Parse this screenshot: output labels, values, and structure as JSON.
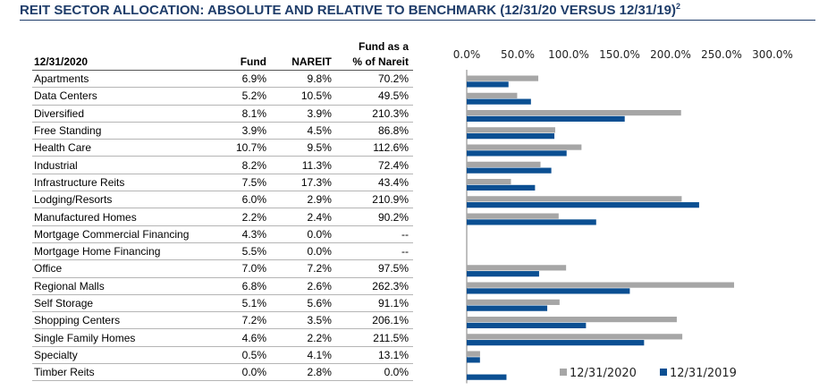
{
  "title": "REIT SECTOR ALLOCATION: ABSOLUTE AND RELATIVE TO BENCHMARK (12/31/20 VERSUS 12/31/19)",
  "title_footnote": "2",
  "table": {
    "headers": {
      "date": "12/31/2020",
      "fund": "Fund",
      "nareit": "NAREIT",
      "ratio_line1": "Fund as a",
      "ratio_line2": "% of Nareit"
    },
    "rows": [
      {
        "sector": "Apartments",
        "fund": "6.9%",
        "nareit": "9.8%",
        "ratio": "70.2%"
      },
      {
        "sector": "Data Centers",
        "fund": "5.2%",
        "nareit": "10.5%",
        "ratio": "49.5%"
      },
      {
        "sector": "Diversified",
        "fund": "8.1%",
        "nareit": "3.9%",
        "ratio": "210.3%"
      },
      {
        "sector": "Free Standing",
        "fund": "3.9%",
        "nareit": "4.5%",
        "ratio": "86.8%"
      },
      {
        "sector": "Health Care",
        "fund": "10.7%",
        "nareit": "9.5%",
        "ratio": "112.6%"
      },
      {
        "sector": "Industrial",
        "fund": "8.2%",
        "nareit": "11.3%",
        "ratio": "72.4%"
      },
      {
        "sector": "Infrastructure Reits",
        "fund": "7.5%",
        "nareit": "17.3%",
        "ratio": "43.4%"
      },
      {
        "sector": "Lodging/Resorts",
        "fund": "6.0%",
        "nareit": "2.9%",
        "ratio": "210.9%"
      },
      {
        "sector": "Manufactured Homes",
        "fund": "2.2%",
        "nareit": "2.4%",
        "ratio": "90.2%"
      },
      {
        "sector": "Mortgage Commercial Financing",
        "fund": "4.3%",
        "nareit": "0.0%",
        "ratio": "--"
      },
      {
        "sector": "Mortgage Home Financing",
        "fund": "5.5%",
        "nareit": "0.0%",
        "ratio": "--"
      },
      {
        "sector": "Office",
        "fund": "7.0%",
        "nareit": "7.2%",
        "ratio": "97.5%"
      },
      {
        "sector": "Regional Malls",
        "fund": "6.8%",
        "nareit": "2.6%",
        "ratio": "262.3%"
      },
      {
        "sector": "Self Storage",
        "fund": "5.1%",
        "nareit": "5.6%",
        "ratio": "91.1%"
      },
      {
        "sector": "Shopping Centers",
        "fund": "7.2%",
        "nareit": "3.5%",
        "ratio": "206.1%"
      },
      {
        "sector": "Single Family Homes",
        "fund": "4.6%",
        "nareit": "2.2%",
        "ratio": "211.5%"
      },
      {
        "sector": "Specialty",
        "fund": "0.5%",
        "nareit": "4.1%",
        "ratio": "13.1%"
      },
      {
        "sector": "Timber Reits",
        "fund": "0.0%",
        "nareit": "2.8%",
        "ratio": "0.0%"
      }
    ]
  },
  "chart_data": {
    "type": "bar",
    "orientation": "horizontal",
    "categories": [
      "Apartments",
      "Data Centers",
      "Diversified",
      "Free Standing",
      "Health Care",
      "Industrial",
      "Infrastructure Reits",
      "Lodging/Resorts",
      "Manufactured Homes",
      "Mortgage Commercial Financing",
      "Mortgage Home Financing",
      "Office",
      "Regional Malls",
      "Self Storage",
      "Shopping Centers",
      "Single Family Homes",
      "Specialty",
      "Timber Reits"
    ],
    "series": [
      {
        "name": "12/31/2020",
        "color": "#a6a6a6",
        "values": [
          70.2,
          49.5,
          210.3,
          86.8,
          112.6,
          72.4,
          43.4,
          210.9,
          90.2,
          null,
          null,
          97.5,
          262.3,
          91.1,
          206.1,
          211.5,
          13.1,
          0.0
        ]
      },
      {
        "name": "12/31/2019",
        "color": "#0b4f92",
        "values": [
          41,
          63,
          155,
          86,
          98,
          83,
          67,
          228,
          127,
          null,
          null,
          71,
          160,
          79,
          117,
          174,
          13,
          39
        ]
      }
    ],
    "x_ticks": [
      "0.0%",
      "50.0%",
      "100.0%",
      "150.0%",
      "200.0%",
      "250.0%",
      "300.0%"
    ],
    "xlim": [
      0,
      300
    ],
    "xaxis_position": "top",
    "grid": false,
    "legend_position": "bottom-right"
  }
}
